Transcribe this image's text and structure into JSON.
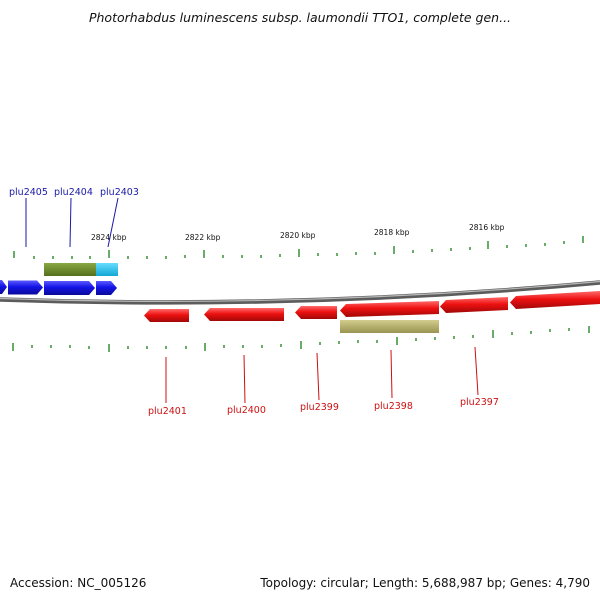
{
  "title": "Photorhabdus luminescens subsp. laumondii TTO1, complete gen...",
  "scale_labels": [
    "2824 kbp",
    "2822 kbp",
    "2820 kbp",
    "2818 kbp",
    "2816 kbp"
  ],
  "genes": {
    "forward": [
      "plu2405",
      "plu2404",
      "plu2403"
    ],
    "reverse": [
      "plu2401",
      "plu2400",
      "plu2399",
      "plu2398",
      "plu2397"
    ]
  },
  "footer": {
    "accession": "Accession: NC_005126",
    "summary": "Topology: circular; Length: 5,688,987 bp; Genes: 4,790"
  },
  "colors": {
    "backbone": "#7a7a7a",
    "forward_gene": "#1414e6",
    "reverse_gene": "#ee1111",
    "tick": "#2a8a2a",
    "forward_label": "#1a1aa8",
    "reverse_label": "#cc1111",
    "feature_olive": "#6b8a2a",
    "feature_cyan": "#22c4ee",
    "feature_khaki": "#b4ae6a"
  }
}
